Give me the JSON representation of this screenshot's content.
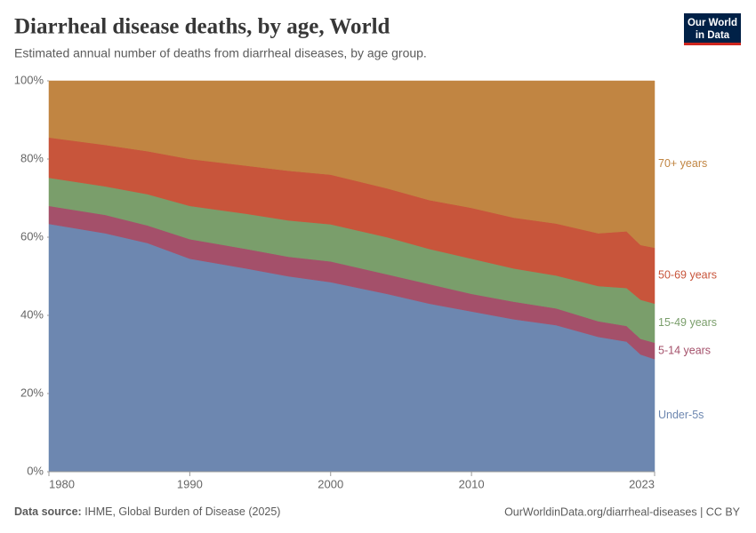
{
  "chart_data": {
    "type": "area",
    "title": "Diarrheal disease deaths, by age, World",
    "subtitle": "Estimated annual number of deaths from diarrheal diseases, by age group.",
    "x": [
      1980,
      1984,
      1987,
      1990,
      1994,
      1997,
      2000,
      2004,
      2007,
      2010,
      2013,
      2016,
      2019,
      2021,
      2022,
      2023
    ],
    "series": [
      {
        "name": "Under-5s",
        "color": "#6d87b0",
        "values": [
          63.4,
          61.0,
          58.5,
          54.5,
          52.0,
          50.0,
          48.5,
          45.5,
          43.0,
          41.0,
          39.0,
          37.5,
          34.5,
          33.3,
          30.0,
          28.8
        ]
      },
      {
        "name": "5-14 years",
        "color": "#a4506a",
        "values": [
          4.6,
          4.7,
          4.5,
          5.0,
          5.0,
          5.0,
          5.3,
          5.0,
          5.0,
          4.5,
          4.5,
          4.3,
          4.0,
          4.0,
          4.0,
          4.2
        ]
      },
      {
        "name": "15-49 years",
        "color": "#7a9e6b",
        "values": [
          7.2,
          7.3,
          8.0,
          8.5,
          9.0,
          9.3,
          9.5,
          9.5,
          9.0,
          9.0,
          8.5,
          8.4,
          9.0,
          9.7,
          10.0,
          10.0
        ]
      },
      {
        "name": "50-69 years",
        "color": "#c8553b",
        "values": [
          10.3,
          10.6,
          11.0,
          12.0,
          12.3,
          12.7,
          12.7,
          12.5,
          12.5,
          13.0,
          13.0,
          13.3,
          13.5,
          14.5,
          14.0,
          14.3
        ]
      },
      {
        "name": "70+ years",
        "color": "#c18542",
        "values": [
          14.5,
          16.4,
          18.0,
          20.0,
          21.7,
          23.0,
          24.0,
          27.5,
          30.5,
          32.5,
          35.0,
          36.5,
          39.0,
          38.5,
          42.0,
          42.7
        ]
      }
    ],
    "xlim": [
      1980,
      2023
    ],
    "xticks": [
      1980,
      1990,
      2000,
      2010,
      2023
    ],
    "ylim": [
      0,
      100
    ],
    "yticks": [
      {
        "value": 0,
        "label": "0%"
      },
      {
        "value": 20,
        "label": "20%"
      },
      {
        "value": 40,
        "label": "40%"
      },
      {
        "value": 60,
        "label": "60%"
      },
      {
        "value": 80,
        "label": "80%"
      },
      {
        "value": 100,
        "label": "100%"
      }
    ],
    "stacked": true
  },
  "logo": [
    "Our World",
    "in Data"
  ],
  "footer": {
    "source_label": "Data source:",
    "source": "IHME, Global Burden of Disease (2025)",
    "url": "OurWorldinData.org/diarrheal-diseases | CC BY"
  }
}
